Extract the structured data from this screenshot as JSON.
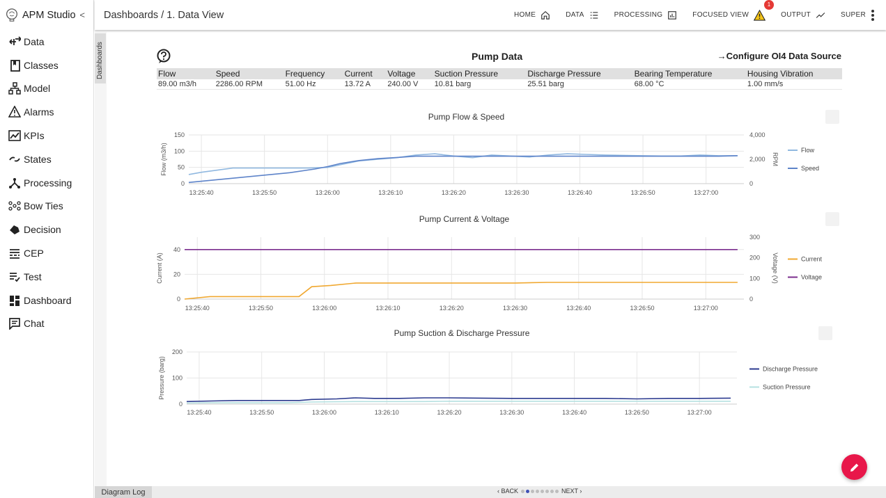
{
  "app": {
    "title": "APM Studio"
  },
  "sidebar": {
    "items": [
      {
        "label": "Data",
        "icon": "data-arrows-icon"
      },
      {
        "label": "Classes",
        "icon": "book-icon"
      },
      {
        "label": "Model",
        "icon": "hierarchy-icon"
      },
      {
        "label": "Alarms",
        "icon": "warning-icon"
      },
      {
        "label": "KPIs",
        "icon": "trend-icon"
      },
      {
        "label": "States",
        "icon": "toggle-icon"
      },
      {
        "label": "Processing",
        "icon": "process-icon"
      },
      {
        "label": "Bow Ties",
        "icon": "bowtie-icon"
      },
      {
        "label": "Decision",
        "icon": "decision-icon"
      },
      {
        "label": "CEP",
        "icon": "cep-icon"
      },
      {
        "label": "Test",
        "icon": "checklist-icon"
      },
      {
        "label": "Dashboard",
        "icon": "dashboard-icon"
      },
      {
        "label": "Chat",
        "icon": "chat-icon"
      }
    ]
  },
  "header": {
    "breadcrumb": "Dashboards / 1. Data View",
    "nav": {
      "home": "HOME",
      "data": "DATA",
      "processing": "PROCESSING",
      "focused": "FOCUSED VIEW",
      "focused_badge": "1",
      "output": "OUTPUT",
      "super": "SUPER"
    }
  },
  "side_tab": "Dashboards",
  "panel": {
    "title": "Pump Data",
    "config_link": "Configure OI4 Data Source",
    "table": {
      "headers": [
        "Flow",
        "Speed",
        "Frequency",
        "Current",
        "Voltage",
        "Suction Pressure",
        "Discharge Pressure",
        "Bearing Temperature",
        "Housing Vibration"
      ],
      "values": [
        "89.00 m3/h",
        "2286.00 RPM",
        "51.00 Hz",
        "13.72 A",
        "240.00 V",
        "10.81 barg",
        "25.51 barg",
        "68.00 °C",
        "1.00 mm/s"
      ]
    }
  },
  "chart_data": [
    {
      "type": "line",
      "title": "Pump Flow & Speed",
      "x_ticks": [
        "13:25:40",
        "13:25:50",
        "13:26:00",
        "13:26:10",
        "13:26:20",
        "13:26:30",
        "13:26:40",
        "13:26:50",
        "13:27:00"
      ],
      "ylabel": "Flow (m3/h)",
      "ylim": [
        0,
        150
      ],
      "y_ticks": [
        "0",
        "50",
        "100",
        "150"
      ],
      "y2label": "RPM",
      "y2lim": [
        0,
        4000
      ],
      "y2_ticks": [
        "0",
        "2,000",
        "4,000"
      ],
      "legend_position": "right",
      "series": [
        {
          "name": "Flow",
          "color": "#90b8e0",
          "axis": "left",
          "x": [
            -2,
            0,
            5,
            10,
            15,
            17,
            20,
            22,
            25,
            28,
            31,
            34,
            37,
            40,
            43,
            46,
            49,
            52,
            55,
            58,
            61,
            64,
            67,
            70,
            73,
            76,
            79,
            82,
            85
          ],
          "y": [
            28,
            35,
            48,
            48,
            48,
            48,
            50,
            58,
            70,
            75,
            80,
            88,
            92,
            85,
            80,
            88,
            85,
            82,
            88,
            92,
            90,
            88,
            87,
            86,
            85,
            85,
            88,
            86,
            86
          ]
        },
        {
          "name": "Speed",
          "color": "#5d83c9",
          "axis": "right",
          "x": [
            -2,
            2,
            6,
            10,
            14,
            18,
            20,
            22,
            25,
            28,
            31,
            34,
            37,
            40,
            43,
            46,
            49,
            52,
            55,
            58,
            61,
            64,
            67,
            70,
            73,
            76,
            79,
            82,
            85
          ],
          "y": [
            100,
            300,
            500,
            700,
            900,
            1200,
            1400,
            1650,
            1900,
            2050,
            2150,
            2250,
            2250,
            2250,
            2250,
            2250,
            2250,
            2250,
            2250,
            2250,
            2250,
            2250,
            2250,
            2250,
            2250,
            2250,
            2250,
            2250,
            2300
          ]
        }
      ]
    },
    {
      "type": "line",
      "title": "Pump Current & Voltage",
      "x_ticks": [
        "13:25:40",
        "13:25:50",
        "13:26:00",
        "13:26:10",
        "13:26:20",
        "13:26:30",
        "13:26:40",
        "13:26:50",
        "13:27:00"
      ],
      "ylabel": "Current (A)",
      "ylim": [
        0,
        50
      ],
      "y_ticks": [
        "0",
        "20",
        "40"
      ],
      "y2label": "Voltage (V)",
      "y2lim": [
        0,
        300
      ],
      "y2_ticks": [
        "0",
        "100",
        "200",
        "300"
      ],
      "legend_position": "right",
      "series": [
        {
          "name": "Current",
          "color": "#f0a830",
          "axis": "left",
          "x": [
            -2,
            2,
            6,
            10,
            13,
            16,
            18,
            21,
            25,
            28,
            32,
            36,
            40,
            45,
            50,
            55,
            60,
            65,
            70,
            75,
            80,
            85
          ],
          "y": [
            0,
            2,
            2,
            2,
            2,
            2,
            10,
            11,
            13,
            13,
            13,
            13,
            13,
            13,
            13,
            13.5,
            13.5,
            13.5,
            13.5,
            13.5,
            13.5,
            13.5
          ]
        },
        {
          "name": "Voltage",
          "color": "#7b2d8e",
          "axis": "right",
          "x": [
            -2,
            85
          ],
          "y": [
            240,
            240
          ]
        }
      ]
    },
    {
      "type": "line",
      "title": "Pump Suction & Discharge Pressure",
      "x_ticks": [
        "13:25:40",
        "13:25:50",
        "13:26:00",
        "13:26:10",
        "13:26:20",
        "13:26:30",
        "13:26:40",
        "13:26:50",
        "13:27:00"
      ],
      "ylabel": "Pressure (barg)",
      "ylim": [
        0,
        200
      ],
      "y_ticks": [
        "0",
        "100",
        "200"
      ],
      "legend_position": "right",
      "series": [
        {
          "name": "Discharge Pressure",
          "color": "#2b3a8f",
          "axis": "left",
          "x": [
            -2,
            2,
            6,
            10,
            14,
            16,
            18,
            22,
            25,
            28,
            32,
            36,
            40,
            45,
            50,
            55,
            60,
            65,
            70,
            75,
            80,
            85
          ],
          "y": [
            10,
            12,
            14,
            14,
            14,
            14,
            18,
            20,
            24,
            22,
            22,
            24,
            24,
            23,
            22,
            22,
            22,
            22,
            20,
            22,
            22,
            23
          ]
        },
        {
          "name": "Suction Pressure",
          "color": "#b5e0e0",
          "axis": "left",
          "x": [
            -2,
            2,
            6,
            10,
            14,
            18,
            22,
            25,
            28,
            32,
            36,
            40,
            45,
            50,
            55,
            60,
            65,
            70,
            75,
            80,
            85
          ],
          "y": [
            4,
            5,
            5,
            5,
            5,
            8,
            9,
            10,
            10,
            10,
            10,
            11,
            11,
            11,
            11,
            11,
            11,
            11,
            11,
            11,
            11
          ]
        }
      ]
    }
  ],
  "footer": {
    "diagram_log": "Diagram Log",
    "back": "BACK",
    "next": "NEXT",
    "page_count": 8,
    "active_page": 2
  },
  "fab": {
    "icon": "edit-pencil-icon"
  }
}
